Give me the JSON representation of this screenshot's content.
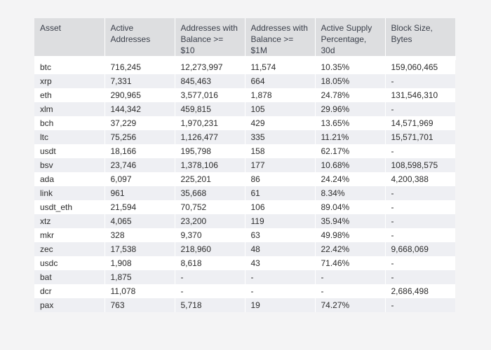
{
  "chart_data": {
    "type": "table",
    "columns": [
      "Asset",
      "Active Addresses",
      "Addresses with Balance >= $10",
      "Addresses with Balance >= $1M",
      "Active Supply Percentage, 30d",
      "Block Size, Bytes"
    ],
    "rows": [
      [
        "btc",
        "716,245",
        "12,273,997",
        "11,574",
        "10.35%",
        "159,060,465"
      ],
      [
        "xrp",
        "7,331",
        "845,463",
        "664",
        "18.05%",
        "-"
      ],
      [
        "eth",
        "290,965",
        "3,577,016",
        "1,878",
        "24.78%",
        "131,546,310"
      ],
      [
        "xlm",
        "144,342",
        "459,815",
        "105",
        "29.96%",
        "-"
      ],
      [
        "bch",
        "37,229",
        "1,970,231",
        "429",
        "13.65%",
        "14,571,969"
      ],
      [
        "ltc",
        "75,256",
        "1,126,477",
        "335",
        "11.21%",
        "15,571,701"
      ],
      [
        "usdt",
        "18,166",
        "195,798",
        "158",
        "62.17%",
        "-"
      ],
      [
        "bsv",
        "23,746",
        "1,378,106",
        "177",
        "10.68%",
        "108,598,575"
      ],
      [
        "ada",
        "6,097",
        "225,201",
        "86",
        "24.24%",
        "4,200,388"
      ],
      [
        "link",
        "961",
        "35,668",
        "61",
        "8.34%",
        "-"
      ],
      [
        "usdt_eth",
        "21,594",
        "70,752",
        "106",
        "89.04%",
        "-"
      ],
      [
        "xtz",
        "4,065",
        "23,200",
        "119",
        "35.94%",
        "-"
      ],
      [
        "mkr",
        "328",
        "9,370",
        "63",
        "49.98%",
        "-"
      ],
      [
        "zec",
        "17,538",
        "218,960",
        "48",
        "22.42%",
        "9,668,069"
      ],
      [
        "usdc",
        "1,908",
        "8,618",
        "43",
        "71.46%",
        "-"
      ],
      [
        "bat",
        "1,875",
        "-",
        "-",
        "-",
        "-"
      ],
      [
        "dcr",
        "11,078",
        "-",
        "-",
        "-",
        "2,686,498"
      ],
      [
        "pax",
        "763",
        "5,718",
        "19",
        "74.27%",
        "-"
      ]
    ]
  }
}
